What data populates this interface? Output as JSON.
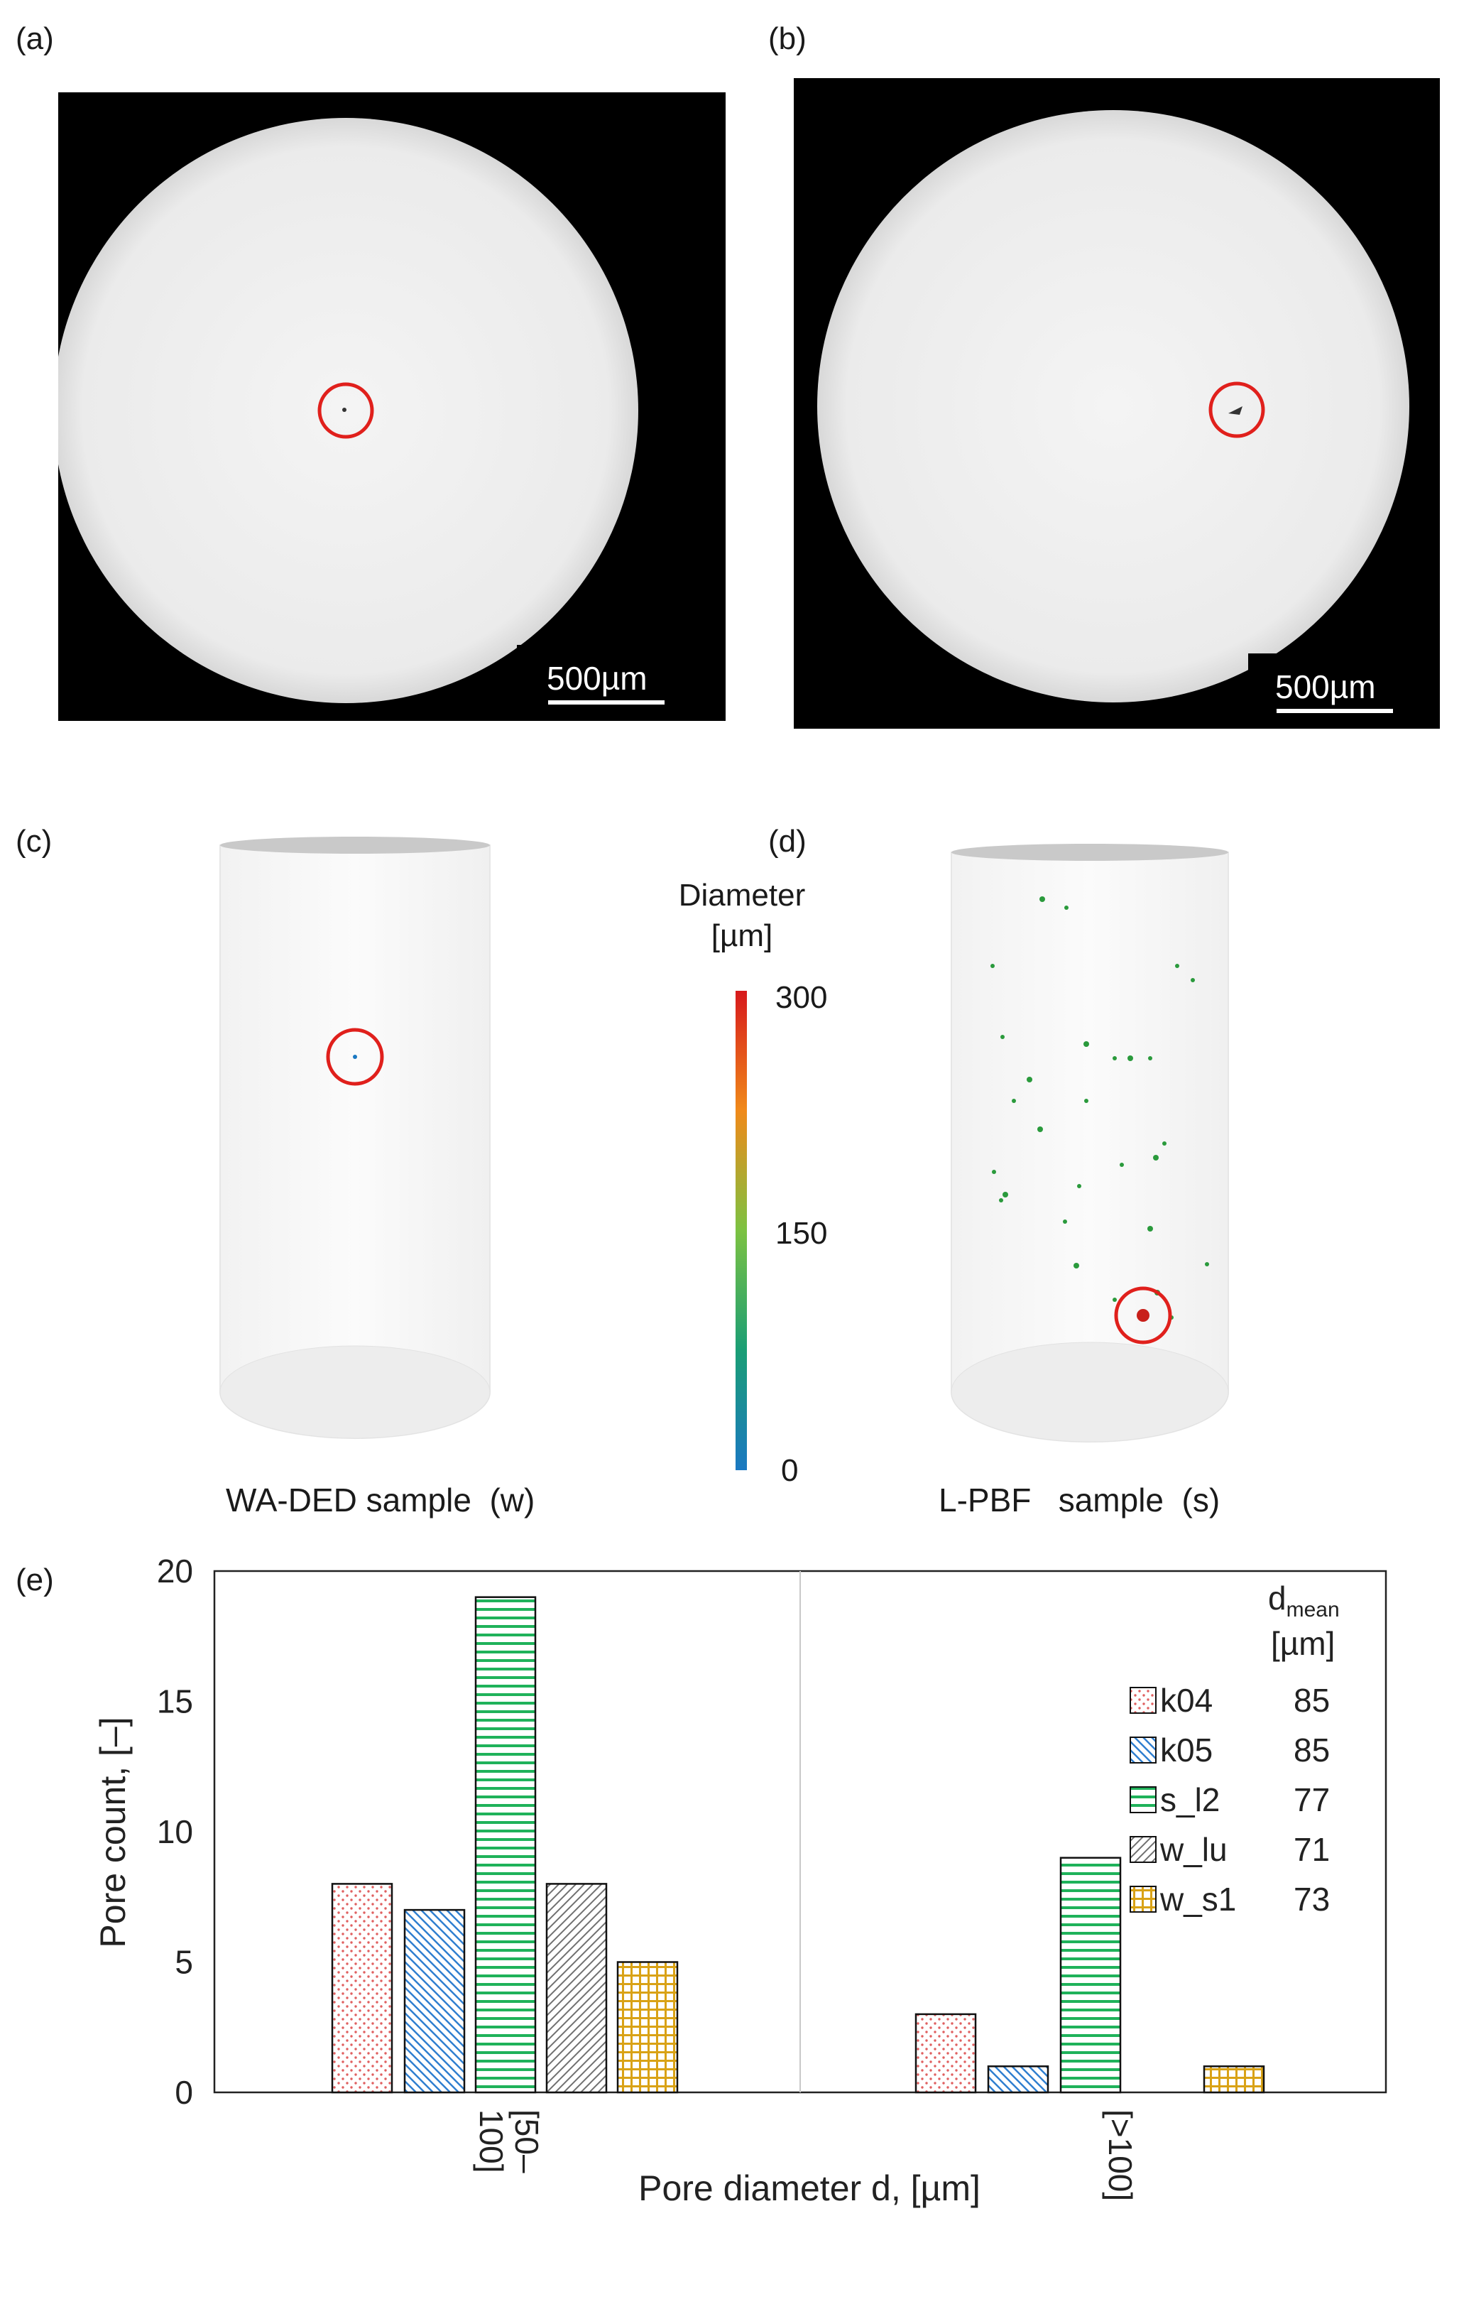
{
  "panels": {
    "a": {
      "label": "(a)",
      "scale_bar": "500µm"
    },
    "b": {
      "label": "(b)",
      "scale_bar": "500µm"
    },
    "c": {
      "label": "(c)",
      "caption": "WA-DED sample  (w)"
    },
    "d": {
      "label": "(d)",
      "caption": "L-PBF   sample  (s)"
    },
    "e": {
      "label": "(e)"
    }
  },
  "colorbar": {
    "title_line1": "Diameter",
    "title_line2": "[µm]",
    "ticks": [
      "300",
      "150",
      "0"
    ],
    "colors": [
      "#d7191c",
      "#f08a1a",
      "#7cc242",
      "#1a9e75",
      "#1a78c2"
    ]
  },
  "chart_data": {
    "type": "bar",
    "categories": [
      "[50–\n100]",
      "[>100]"
    ],
    "category_labels": [
      [
        "[50–",
        "100]"
      ],
      [
        "[>100]"
      ]
    ],
    "series": [
      {
        "name": "k04",
        "values": [
          8,
          3
        ],
        "d_mean": "85",
        "color": "#e06060",
        "pattern": "dots"
      },
      {
        "name": "k05",
        "values": [
          7,
          1
        ],
        "d_mean": "85",
        "color": "#2f7fd0",
        "pattern": "diag"
      },
      {
        "name": "s_l2",
        "values": [
          19,
          9
        ],
        "d_mean": "77",
        "color": "#1fb25a",
        "pattern": "hlines"
      },
      {
        "name": "w_lu",
        "values": [
          8,
          0
        ],
        "d_mean": "71",
        "color": "#707070",
        "pattern": "diag2"
      },
      {
        "name": "w_s1",
        "values": [
          5,
          1
        ],
        "d_mean": "73",
        "color": "#d9a216",
        "pattern": "grid"
      }
    ],
    "ylabel": "Pore count, [–]",
    "xlabel": "Pore diameter d, [µm]",
    "ylim": [
      0,
      20
    ],
    "yticks": [
      0,
      5,
      10,
      15,
      20
    ],
    "legend_header": {
      "main": "d",
      "sub": "mean",
      "unit": "[µm]"
    },
    "legend_position": "right"
  }
}
